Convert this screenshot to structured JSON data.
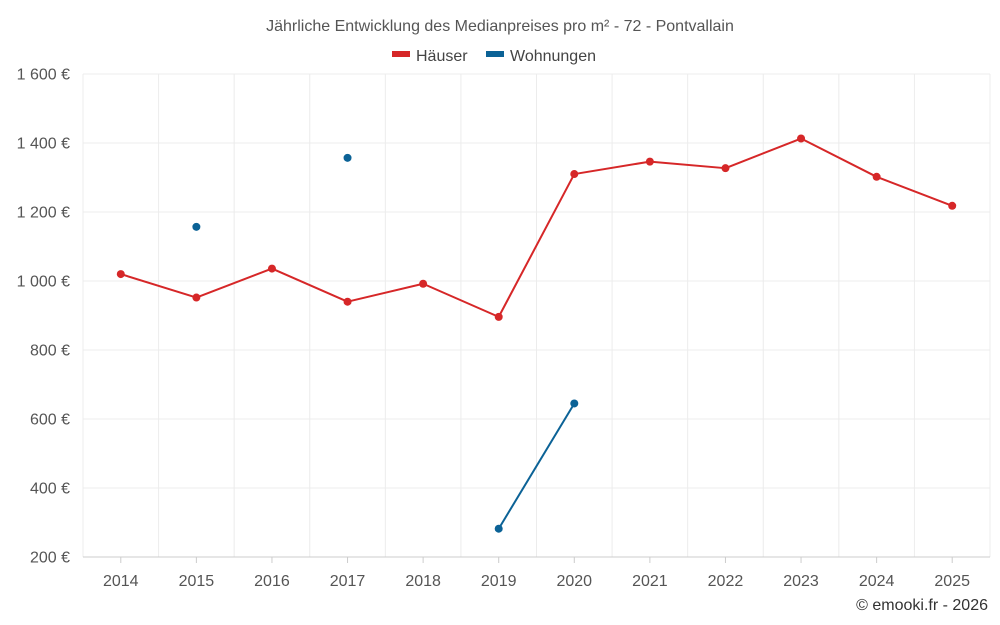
{
  "chart_data": {
    "type": "line",
    "title": "Jährliche Entwicklung des Medianpreises pro m² - 72 - Pontvallain",
    "categories": [
      "2014",
      "2015",
      "2016",
      "2017",
      "2018",
      "2019",
      "2020",
      "2021",
      "2022",
      "2023",
      "2024",
      "2025"
    ],
    "series": [
      {
        "name": "Häuser",
        "color": "#d62728",
        "values": [
          1020,
          952,
          1036,
          940,
          992,
          896,
          1310,
          1346,
          1327,
          1413,
          1302,
          1218
        ]
      },
      {
        "name": "Wohnungen",
        "color": "#0b6296",
        "values": [
          null,
          1157,
          null,
          1357,
          null,
          282,
          645,
          null,
          null,
          null,
          null,
          null
        ]
      }
    ],
    "ylim": [
      200,
      1600
    ],
    "yticks": [
      200,
      400,
      600,
      800,
      1000,
      1200,
      1400,
      1600
    ],
    "ytick_labels": [
      "200 €",
      "400 €",
      "600 €",
      "800 €",
      "1 000 €",
      "1 200 €",
      "1 400 €",
      "1 600 €"
    ],
    "xlabel": "",
    "ylabel": "",
    "grid": true,
    "legend_position": "top-center"
  },
  "credit": "© emooki.fr - 2026"
}
